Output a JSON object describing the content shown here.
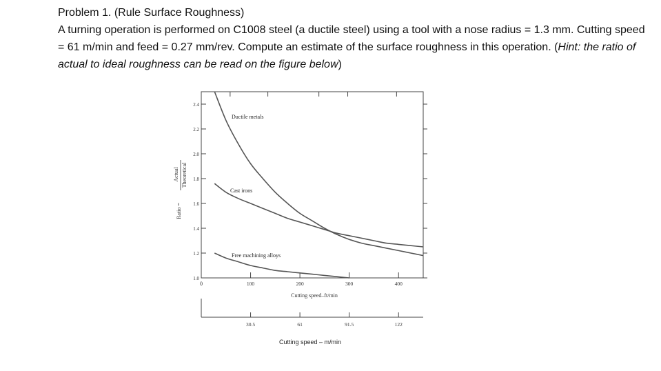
{
  "problem": {
    "heading": "Problem 1. (Rule Surface Roughness)",
    "body_before_hint": "A turning operation is performed on C1008 steel (a ductile steel) using a tool with a nose radius = 1.3 mm. Cutting speed = 61 m/min and feed = 0.27 mm/rev. Compute an estimate of the surface roughness in this operation. (",
    "hint": "Hint: the ratio of actual to ideal roughness can be read on the figure below",
    "body_after_hint": ")"
  },
  "chart_data": {
    "type": "line",
    "ylabel_prefix": "Ratio =",
    "ylabel_numerator": "Actual",
    "ylabel_denominator": "Theoretical",
    "xlabel": "Cutting speed–ft/min",
    "xlabel_secondary": "Cutting speed – m/min",
    "xlim": [
      0,
      450
    ],
    "ylim": [
      1.0,
      2.5
    ],
    "x_ticks": [
      "100",
      "200",
      "300",
      "400"
    ],
    "x_tick_values": [
      100,
      200,
      300,
      400
    ],
    "x_origin_label": "0",
    "x2_ticks": [
      "30.5",
      "61",
      "91.5",
      "122"
    ],
    "y_ticks": [
      "1.0",
      "1.2",
      "1.4",
      "1.6",
      "1.8",
      "2.0",
      "2.2",
      "2.4"
    ],
    "y_tick_values": [
      1.0,
      1.2,
      1.4,
      1.6,
      1.8,
      2.0,
      2.2,
      2.4
    ],
    "grid": false,
    "series": [
      {
        "name": "Ductile metals",
        "x": [
          27,
          50,
          75,
          100,
          125,
          150,
          175,
          200,
          225,
          250,
          275,
          300,
          325,
          350,
          375,
          400,
          425,
          450
        ],
        "y": [
          2.5,
          2.27,
          2.08,
          1.92,
          1.8,
          1.69,
          1.6,
          1.52,
          1.46,
          1.4,
          1.35,
          1.31,
          1.28,
          1.26,
          1.24,
          1.22,
          1.2,
          1.18
        ]
      },
      {
        "name": "Cast irons",
        "x": [
          27,
          50,
          75,
          100,
          125,
          150,
          175,
          200,
          225,
          250,
          275,
          300,
          325,
          350,
          375,
          400,
          425,
          450
        ],
        "y": [
          1.76,
          1.69,
          1.64,
          1.6,
          1.56,
          1.52,
          1.48,
          1.45,
          1.42,
          1.39,
          1.36,
          1.34,
          1.32,
          1.3,
          1.28,
          1.27,
          1.26,
          1.25
        ]
      },
      {
        "name": "Free machining alloys",
        "x": [
          27,
          50,
          75,
          100,
          125,
          150,
          175,
          200,
          225,
          250,
          275,
          300
        ],
        "y": [
          1.2,
          1.16,
          1.13,
          1.1,
          1.08,
          1.06,
          1.05,
          1.04,
          1.03,
          1.02,
          1.01,
          1.0
        ]
      }
    ],
    "annotations": [
      "Ductile metals",
      "Cast irons",
      "Free machining alloys"
    ]
  }
}
